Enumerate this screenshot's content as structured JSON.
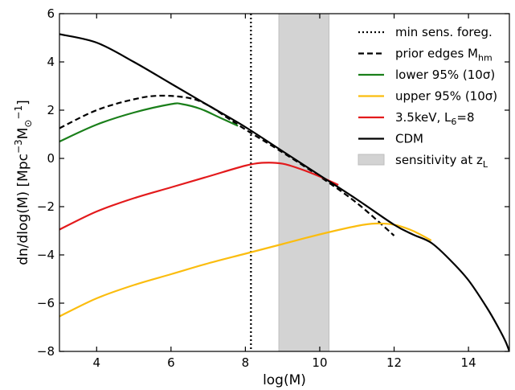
{
  "chart_data": {
    "type": "line",
    "xlabel": "log(M)",
    "ylabel": "dn/dlog(M) [Mpc⁻³M☉⁻¹]",
    "xlim": [
      3,
      15.1
    ],
    "ylim": [
      -8,
      6
    ],
    "xticks": [
      4,
      6,
      8,
      10,
      12,
      14
    ],
    "yticks": [
      -8,
      -6,
      -4,
      -2,
      0,
      2,
      4,
      6
    ],
    "grid": false,
    "legend_position": "top-right",
    "vline": {
      "x": 8.15,
      "label": "min sens. foreg."
    },
    "band": {
      "x0": 8.9,
      "x1": 10.25,
      "label": "sensitivity at zL"
    },
    "series": [
      {
        "name": "prior edges Mhm",
        "color": "#000000",
        "dash": "dashed",
        "x": [
          3,
          4,
          5,
          5.7,
          6.5,
          7,
          7.5,
          8,
          9,
          10,
          11,
          12
        ],
        "y": [
          1.25,
          2.0,
          2.45,
          2.6,
          2.5,
          2.2,
          1.7,
          1.2,
          0.25,
          -0.75,
          -1.85,
          -3.2
        ]
      },
      {
        "name": "lower 95% (10σ)",
        "color": "#1a7f1a",
        "dash": "solid",
        "x": [
          3,
          4,
          5,
          6,
          6.3,
          6.8,
          7.3,
          7.8
        ],
        "y": [
          0.7,
          1.4,
          1.9,
          2.25,
          2.25,
          2.05,
          1.7,
          1.35
        ]
      },
      {
        "name": "upper 95% (10σ)",
        "color": "#fbbd0f",
        "dash": "solid",
        "x": [
          3,
          4,
          5,
          6,
          7,
          8,
          9,
          10,
          11,
          11.5,
          12,
          12.5,
          13
        ],
        "y": [
          -6.55,
          -5.8,
          -5.25,
          -4.8,
          -4.35,
          -3.95,
          -3.55,
          -3.15,
          -2.8,
          -2.7,
          -2.75,
          -3.0,
          -3.4
        ]
      },
      {
        "name": "3.5keV, L6=8",
        "color": "#e31a1c",
        "dash": "solid",
        "x": [
          3,
          4,
          5,
          6,
          7,
          8,
          8.5,
          9,
          9.5,
          10,
          10.5
        ],
        "y": [
          -2.95,
          -2.2,
          -1.65,
          -1.2,
          -0.75,
          -0.3,
          -0.18,
          -0.22,
          -0.45,
          -0.75,
          -1.1
        ]
      },
      {
        "name": "CDM",
        "color": "#000000",
        "dash": "solid",
        "x": [
          3,
          4,
          5,
          6,
          7,
          8,
          9,
          10,
          11,
          12,
          12.5,
          13,
          13.5,
          14,
          14.5,
          14.8,
          15,
          15.1
        ],
        "y": [
          5.15,
          4.8,
          4.0,
          3.1,
          2.2,
          1.3,
          0.3,
          -0.7,
          -1.7,
          -2.75,
          -3.15,
          -3.5,
          -4.2,
          -5.05,
          -6.2,
          -7.0,
          -7.6,
          -8.0
        ]
      }
    ],
    "legend": [
      {
        "label": "min sens. foreg.",
        "color": "#000000",
        "style": "dotted"
      },
      {
        "label": "prior edges M",
        "sub": "hm",
        "color": "#000000",
        "style": "dashed"
      },
      {
        "label": "lower 95% (10σ)",
        "color": "#1a7f1a",
        "style": "solid"
      },
      {
        "label": "upper 95% (10σ)",
        "color": "#fbbd0f",
        "style": "solid"
      },
      {
        "label": "3.5keV, L",
        "sub": "6",
        "tail": "=8",
        "color": "#e31a1c",
        "style": "solid"
      },
      {
        "label": "CDM",
        "color": "#000000",
        "style": "solid"
      },
      {
        "label": "sensitivity at z",
        "sub": "L",
        "color": "#d3d3d3",
        "style": "patch"
      }
    ]
  }
}
